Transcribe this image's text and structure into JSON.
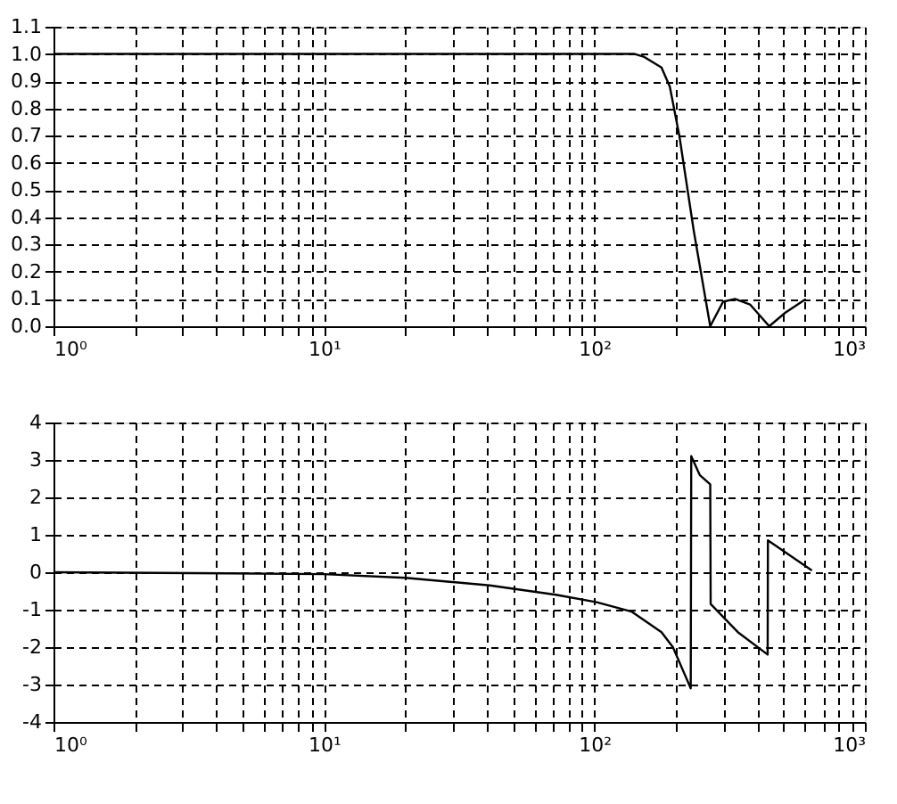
{
  "chart_data": [
    {
      "type": "line",
      "log": "x",
      "grid": true,
      "x": [
        1,
        141,
        152,
        177,
        190,
        206,
        233,
        268,
        299,
        331,
        376,
        443,
        508,
        605
      ],
      "series": [
        {
          "color": "#000000",
          "values": [
            1.0,
            1.0,
            0.99,
            0.95,
            0.88,
            0.7,
            0.35,
            0.0,
            0.09,
            0.1,
            0.08,
            0.0,
            0.05,
            0.1
          ]
        }
      ],
      "xlim": [
        1,
        1000
      ],
      "xticks": [
        {
          "value": 1,
          "label": "10⁰"
        },
        {
          "value": 2,
          "label": null
        },
        {
          "value": 3,
          "label": null
        },
        {
          "value": 4,
          "label": null
        },
        {
          "value": 5,
          "label": null
        },
        {
          "value": 6,
          "label": null
        },
        {
          "value": 7,
          "label": null
        },
        {
          "value": 8,
          "label": null
        },
        {
          "value": 9,
          "label": null
        },
        {
          "value": 10,
          "label": "10¹"
        },
        {
          "value": 20,
          "label": null
        },
        {
          "value": 30,
          "label": null
        },
        {
          "value": 40,
          "label": null
        },
        {
          "value": 50,
          "label": null
        },
        {
          "value": 60,
          "label": null
        },
        {
          "value": 70,
          "label": null
        },
        {
          "value": 80,
          "label": null
        },
        {
          "value": 90,
          "label": null
        },
        {
          "value": 100,
          "label": "10²"
        },
        {
          "value": 200,
          "label": null
        },
        {
          "value": 300,
          "label": null
        },
        {
          "value": 400,
          "label": null
        },
        {
          "value": 500,
          "label": null
        },
        {
          "value": 600,
          "label": null
        },
        {
          "value": 700,
          "label": null
        },
        {
          "value": 800,
          "label": null
        },
        {
          "value": 900,
          "label": null
        },
        {
          "value": 1000,
          "label": "10³"
        }
      ],
      "ylim": [
        0,
        1.1
      ],
      "yticks": [
        {
          "value": 0,
          "label": "0.0"
        },
        {
          "value": 0.1,
          "label": "0.1"
        },
        {
          "value": 0.2,
          "label": "0.2"
        },
        {
          "value": 0.3,
          "label": "0.3"
        },
        {
          "value": 0.4,
          "label": "0.4"
        },
        {
          "value": 0.5,
          "label": "0.5"
        },
        {
          "value": 0.6,
          "label": "0.6"
        },
        {
          "value": 0.7,
          "label": "0.7"
        },
        {
          "value": 0.8,
          "label": "0.8"
        },
        {
          "value": 0.9,
          "label": "0.9"
        },
        {
          "value": 1.0,
          "label": "1.0"
        },
        {
          "value": 1.1,
          "label": "1.1"
        }
      ]
    },
    {
      "type": "line",
      "log": "x",
      "grid": true,
      "x": [
        1,
        4.5,
        10,
        20,
        41,
        72,
        102,
        137,
        177,
        195,
        227,
        228,
        245,
        268,
        269,
        339,
        437,
        438,
        637
      ],
      "series": [
        {
          "color": "#000000",
          "values": [
            0,
            -0.03,
            -0.05,
            -0.15,
            -0.35,
            -0.6,
            -0.8,
            -1.05,
            -1.6,
            -2.0,
            -3.1,
            3.1,
            2.6,
            2.35,
            -0.85,
            -1.6,
            -2.2,
            0.85,
            0.05
          ]
        }
      ],
      "xlim": [
        1,
        1000
      ],
      "xticks": [
        {
          "value": 1,
          "label": "10⁰"
        },
        {
          "value": 2,
          "label": null
        },
        {
          "value": 3,
          "label": null
        },
        {
          "value": 4,
          "label": null
        },
        {
          "value": 5,
          "label": null
        },
        {
          "value": 6,
          "label": null
        },
        {
          "value": 7,
          "label": null
        },
        {
          "value": 8,
          "label": null
        },
        {
          "value": 9,
          "label": null
        },
        {
          "value": 10,
          "label": "10¹"
        },
        {
          "value": 20,
          "label": null
        },
        {
          "value": 30,
          "label": null
        },
        {
          "value": 40,
          "label": null
        },
        {
          "value": 50,
          "label": null
        },
        {
          "value": 60,
          "label": null
        },
        {
          "value": 70,
          "label": null
        },
        {
          "value": 80,
          "label": null
        },
        {
          "value": 90,
          "label": null
        },
        {
          "value": 100,
          "label": "10²"
        },
        {
          "value": 200,
          "label": null
        },
        {
          "value": 300,
          "label": null
        },
        {
          "value": 400,
          "label": null
        },
        {
          "value": 500,
          "label": null
        },
        {
          "value": 600,
          "label": null
        },
        {
          "value": 700,
          "label": null
        },
        {
          "value": 800,
          "label": null
        },
        {
          "value": 900,
          "label": null
        },
        {
          "value": 1000,
          "label": "10³"
        }
      ],
      "ylim": [
        -4,
        4
      ],
      "yticks": [
        -4,
        -3,
        -2,
        -1,
        0,
        1,
        2,
        3,
        4
      ]
    }
  ]
}
